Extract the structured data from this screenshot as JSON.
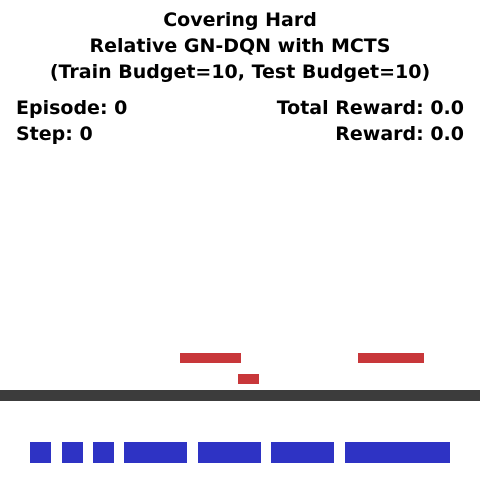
{
  "header": {
    "title_line1": "Covering Hard",
    "title_line2": "Relative GN-DQN with MCTS",
    "title_line3": "(Train Budget=10, Test Budget=10)"
  },
  "stats": {
    "episode": "Episode: 0",
    "step": "Step: 0",
    "total_reward": "Total Reward: 0.0",
    "reward": "Reward: 0.0"
  },
  "colors": {
    "target_block": "#c8373a",
    "available_block": "#2e33c4",
    "floor": "#3c3c3c",
    "background": "#ffffff"
  }
}
